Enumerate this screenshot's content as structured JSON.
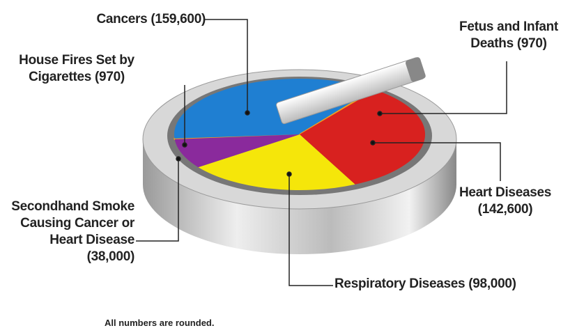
{
  "chart_data": {
    "type": "pie",
    "categories": [
      "House Fires Set by Cigarettes",
      "Cancers",
      "Fetus and Infant Deaths",
      "Heart Diseases",
      "Respiratory Diseases",
      "Secondhand Smoke Causing Cancer or Heart Disease"
    ],
    "values": [
      970,
      159600,
      970,
      142600,
      98000,
      38000
    ],
    "value_labels": [
      "(970)",
      "(159,600)",
      "(970)",
      "(142,600)",
      "(98,000)",
      "(38,000)"
    ],
    "colors": [
      "#f0a020",
      "#1f7fd2",
      "#f0a020",
      "#d8211f",
      "#f5e60a",
      "#8a2a9c"
    ],
    "note": "All numbers are rounded."
  }
}
